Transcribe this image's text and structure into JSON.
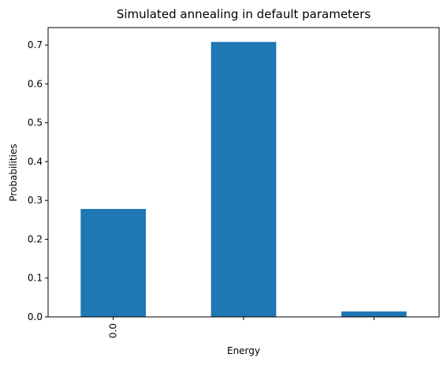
{
  "chart_data": {
    "type": "bar",
    "title": "Simulated annealing in default parameters",
    "xlabel": "Energy",
    "ylabel": "Probabilities",
    "categories": [
      "0.0",
      "",
      ""
    ],
    "values": [
      0.278,
      0.708,
      0.014
    ],
    "ylim": [
      0,
      0.745
    ],
    "yticks": [
      0.0,
      0.1,
      0.2,
      0.3,
      0.4,
      0.5,
      0.6,
      0.7
    ],
    "ytick_labels": [
      "0.0",
      "0.1",
      "0.2",
      "0.3",
      "0.4",
      "0.5",
      "0.6",
      "0.7"
    ],
    "bar_color": "#1f77b4",
    "grid": false,
    "legend": false
  }
}
